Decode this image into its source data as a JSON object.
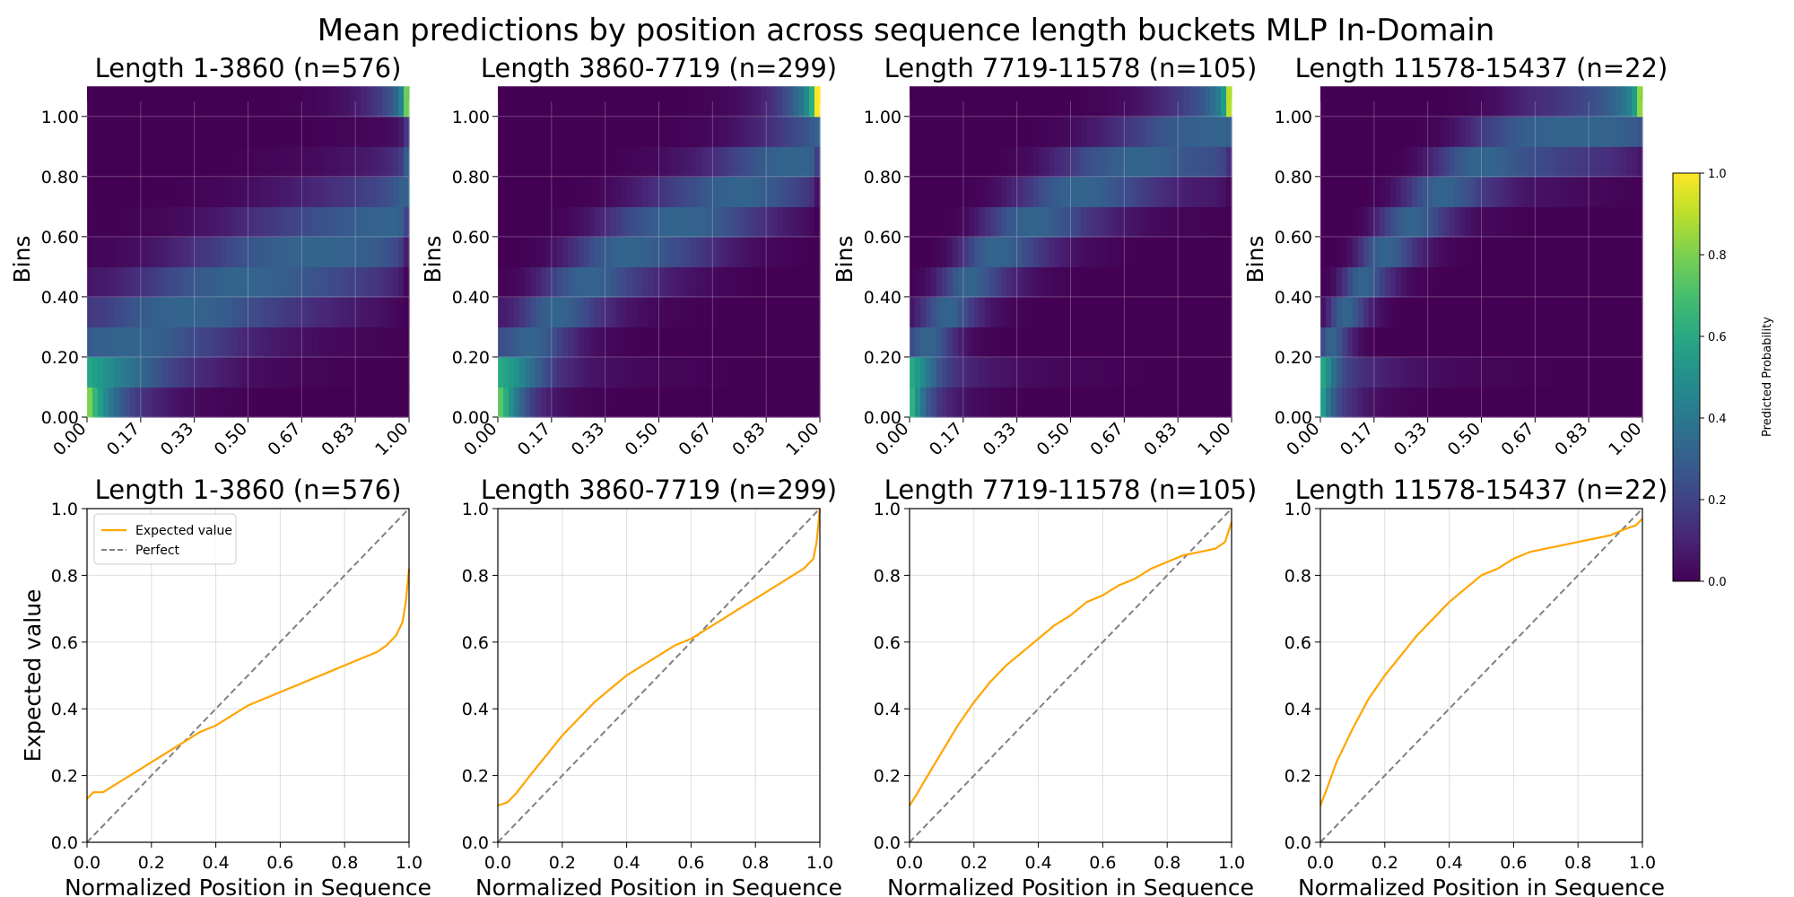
{
  "colors": {
    "line": "#ffa500",
    "perfect": "#808080",
    "grid": "#bfbfbf",
    "axis": "#000000"
  },
  "chart_data": {
    "title": "Mean predictions by position across sequence length buckets MLP In-Domain",
    "colorbar": {
      "label": "Predicted Probability",
      "ticks": [
        "0.0",
        "0.2",
        "0.4",
        "0.6",
        "0.8",
        "1.0"
      ],
      "range": [
        0,
        1
      ],
      "colormap": "viridis"
    },
    "heatmap_axes": {
      "ylabel": "Bins",
      "xticks": [
        "0.00",
        "0.17",
        "0.33",
        "0.50",
        "0.67",
        "0.83",
        "1.00"
      ],
      "yticks": [
        "0.00",
        "0.20",
        "0.40",
        "0.60",
        "0.80",
        "1.00"
      ],
      "bins": [
        0.0,
        0.1,
        0.2,
        0.3,
        0.4,
        0.5,
        0.6,
        0.7,
        0.8,
        0.9,
        1.0
      ]
    },
    "line_axes": {
      "xlabel": "Normalized Position in Sequence",
      "ylabel": "Expected value",
      "xticks": [
        "0.0",
        "0.2",
        "0.4",
        "0.6",
        "0.8",
        "1.0"
      ],
      "yticks": [
        "0.0",
        "0.2",
        "0.4",
        "0.6",
        "0.8",
        "1.0"
      ],
      "xlim": [
        0,
        1
      ],
      "ylim": [
        0,
        1
      ]
    },
    "legend": {
      "expected": "Expected value",
      "perfect": "Perfect",
      "position": "upper-left"
    },
    "panels": [
      {
        "title": "Length 1-3860 (n=576)",
        "type": "line",
        "expected_value": {
          "x": [
            0,
            0.02,
            0.05,
            0.1,
            0.15,
            0.2,
            0.25,
            0.3,
            0.35,
            0.4,
            0.45,
            0.5,
            0.55,
            0.6,
            0.65,
            0.7,
            0.75,
            0.8,
            0.85,
            0.9,
            0.93,
            0.96,
            0.98,
            0.99,
            1.0
          ],
          "y": [
            0.13,
            0.15,
            0.15,
            0.18,
            0.21,
            0.24,
            0.27,
            0.3,
            0.33,
            0.35,
            0.38,
            0.41,
            0.43,
            0.45,
            0.47,
            0.49,
            0.51,
            0.53,
            0.55,
            0.57,
            0.59,
            0.62,
            0.66,
            0.72,
            0.82
          ]
        }
      },
      {
        "title": "Length 3860-7719 (n=299)",
        "type": "line",
        "expected_value": {
          "x": [
            0,
            0.03,
            0.06,
            0.1,
            0.15,
            0.2,
            0.25,
            0.3,
            0.35,
            0.4,
            0.45,
            0.5,
            0.55,
            0.6,
            0.65,
            0.7,
            0.75,
            0.8,
            0.85,
            0.9,
            0.95,
            0.98,
            0.99,
            1.0
          ],
          "y": [
            0.11,
            0.12,
            0.15,
            0.2,
            0.26,
            0.32,
            0.37,
            0.42,
            0.46,
            0.5,
            0.53,
            0.56,
            0.59,
            0.61,
            0.64,
            0.67,
            0.7,
            0.73,
            0.76,
            0.79,
            0.82,
            0.85,
            0.9,
            1.0
          ]
        }
      },
      {
        "title": "Length 7719-11578 (n=105)",
        "type": "line",
        "expected_value": {
          "x": [
            0,
            0.02,
            0.05,
            0.1,
            0.15,
            0.2,
            0.25,
            0.3,
            0.35,
            0.4,
            0.45,
            0.5,
            0.55,
            0.6,
            0.65,
            0.7,
            0.75,
            0.8,
            0.85,
            0.9,
            0.95,
            0.98,
            1.0
          ],
          "y": [
            0.11,
            0.14,
            0.19,
            0.27,
            0.35,
            0.42,
            0.48,
            0.53,
            0.57,
            0.61,
            0.65,
            0.68,
            0.72,
            0.74,
            0.77,
            0.79,
            0.82,
            0.84,
            0.86,
            0.87,
            0.88,
            0.9,
            0.96
          ]
        }
      },
      {
        "title": "Length 11578-15437 (n=22)",
        "type": "line",
        "expected_value": {
          "x": [
            0,
            0.02,
            0.05,
            0.1,
            0.15,
            0.2,
            0.25,
            0.3,
            0.35,
            0.4,
            0.45,
            0.5,
            0.55,
            0.6,
            0.65,
            0.7,
            0.75,
            0.8,
            0.85,
            0.9,
            0.95,
            0.98,
            1.0
          ],
          "y": [
            0.11,
            0.16,
            0.24,
            0.34,
            0.43,
            0.5,
            0.56,
            0.62,
            0.67,
            0.72,
            0.76,
            0.8,
            0.82,
            0.85,
            0.87,
            0.88,
            0.89,
            0.9,
            0.91,
            0.92,
            0.94,
            0.95,
            0.97
          ]
        }
      }
    ],
    "heatmaps": [
      {
        "title": "Length 1-3860 (n=576)",
        "type": "heatmap",
        "spread": 0.14,
        "peak": 0.68,
        "top_boost": 0.45
      },
      {
        "title": "Length 3860-7719 (n=299)",
        "type": "heatmap",
        "spread": 0.11,
        "peak": 0.62,
        "top_boost": 0.55
      },
      {
        "title": "Length 7719-11578 (n=105)",
        "type": "heatmap",
        "spread": 0.1,
        "peak": 0.55,
        "top_boost": 0.35
      },
      {
        "title": "Length 11578-15437 (n=22)",
        "type": "heatmap",
        "spread": 0.09,
        "peak": 0.5,
        "top_boost": 0.25
      }
    ]
  }
}
